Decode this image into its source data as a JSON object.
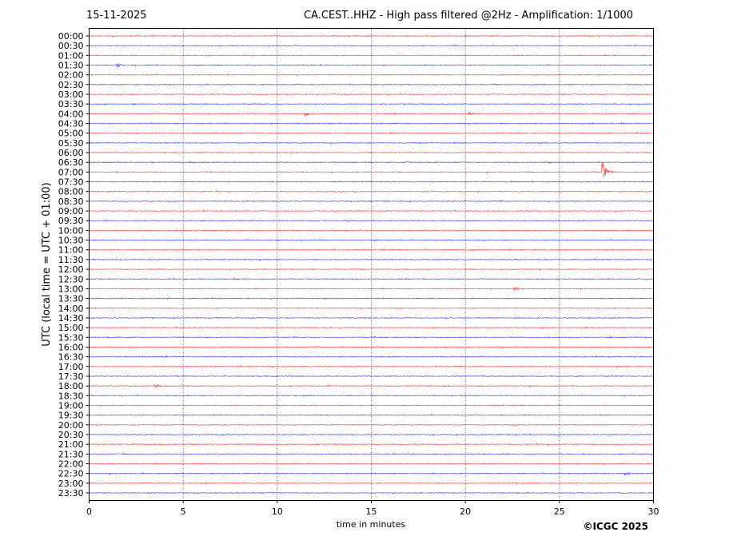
{
  "header": {
    "date": "15-11-2025",
    "title": "CA.CEST..HHZ - High pass filtered @2Hz - Amplification: 1/1000"
  },
  "footer": {
    "copyright": "©ICGC 2025"
  },
  "chart_data": {
    "type": "line",
    "title": "CA.CEST..HHZ - High pass filtered @2Hz - Amplification: 1/1000",
    "xlabel": "time in minutes",
    "ylabel": "UTC (local time = UTC + 01:00)",
    "xlim": [
      0,
      30
    ],
    "xticks": [
      "0",
      "5",
      "10",
      "15",
      "20",
      "25",
      "30"
    ],
    "yticks": [
      "00:00",
      "00:30",
      "01:00",
      "01:30",
      "02:00",
      "02:30",
      "03:00",
      "03:30",
      "04:00",
      "04:30",
      "05:00",
      "05:30",
      "06:00",
      "06:30",
      "07:00",
      "07:30",
      "08:00",
      "08:30",
      "09:00",
      "09:30",
      "10:00",
      "10:30",
      "11:00",
      "11:30",
      "12:00",
      "12:30",
      "13:00",
      "13:30",
      "14:00",
      "14:30",
      "15:00",
      "15:30",
      "16:00",
      "16:30",
      "17:00",
      "17:30",
      "18:00",
      "18:30",
      "19:00",
      "19:30",
      "20:00",
      "20:30",
      "21:00",
      "21:30",
      "22:00",
      "22:30",
      "23:00",
      "23:30"
    ],
    "grid": "vertical dotted lines every 5 minutes",
    "trace_colors": [
      "#ff0000",
      "#0000ff"
    ],
    "events": [
      {
        "row": "07:00",
        "minute": 27.3,
        "amplitude": "large"
      },
      {
        "row": "04:00",
        "minute": 20.2,
        "amplitude": "small"
      },
      {
        "row": "13:00",
        "minute": 22.6,
        "amplitude": "small"
      },
      {
        "row": "04:00",
        "minute": 11.5,
        "amplitude": "small"
      },
      {
        "row": "18:00",
        "minute": 3.5,
        "amplitude": "small"
      },
      {
        "row": "01:30",
        "minute": 1.5,
        "amplitude": "small"
      },
      {
        "row": "22:30",
        "minute": 28.5,
        "amplitude": "small"
      }
    ]
  }
}
